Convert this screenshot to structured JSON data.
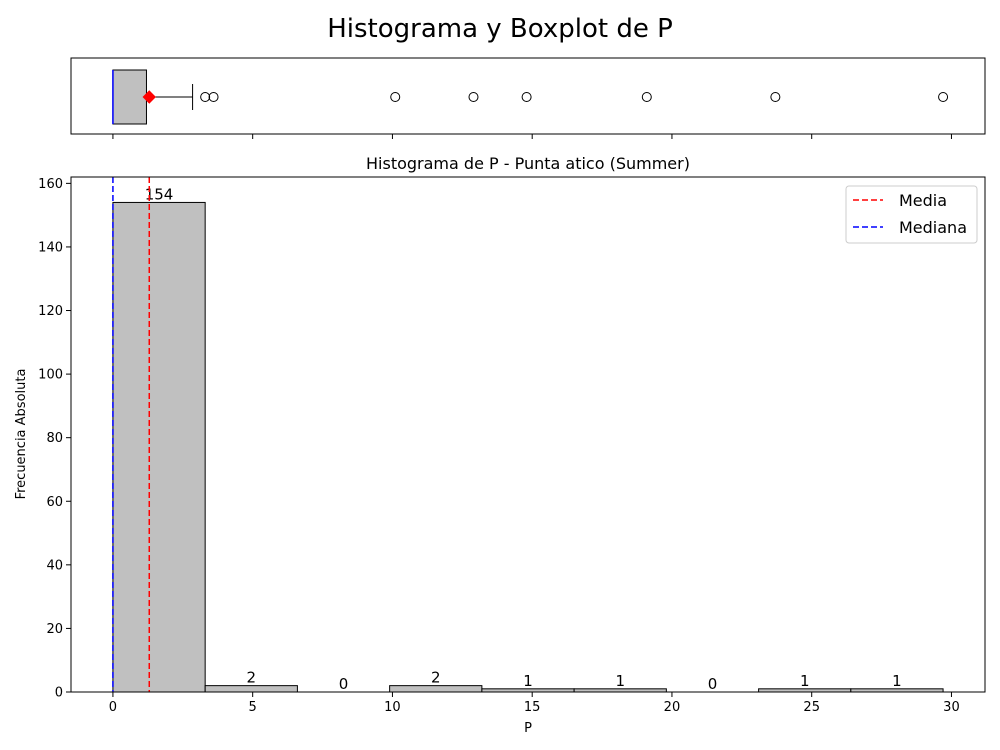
{
  "title": "Histograma y Boxplot de P",
  "chart_data": [
    {
      "type": "box",
      "orientation": "horizontal",
      "xlim": [
        -1.5,
        31.2
      ],
      "xticks": [
        0,
        5,
        10,
        15,
        20,
        25,
        30
      ],
      "whisker_low": 0,
      "q1": 0,
      "median": 0,
      "q3": 1.2,
      "whisker_high": 2.85,
      "mean": 1.3,
      "outliers": [
        3.3,
        3.6,
        10.1,
        12.9,
        14.8,
        19.1,
        23.7,
        29.7
      ],
      "box_color": "#c0c0c0",
      "median_color": "#0000ff",
      "mean_color": "#ff0000"
    },
    {
      "type": "bar",
      "title": "Histograma de P - Punta atico (Summer)",
      "xlabel": "P",
      "ylabel": "Frecuencia Absoluta",
      "xlim": [
        -1.5,
        31.2
      ],
      "ylim": [
        0,
        162
      ],
      "xticks": [
        "0",
        "5",
        "10",
        "15",
        "20",
        "25",
        "30"
      ],
      "yticks": [
        "0",
        "20",
        "40",
        "60",
        "80",
        "100",
        "120",
        "140",
        "160"
      ],
      "bin_edges": [
        0,
        3.3,
        6.6,
        9.9,
        13.2,
        16.5,
        19.8,
        23.1,
        26.4,
        29.7
      ],
      "values": [
        154,
        2,
        0,
        2,
        1,
        1,
        0,
        1,
        1
      ],
      "labels": [
        "154",
        "2",
        "0",
        "2",
        "1",
        "1",
        "0",
        "1",
        "1"
      ],
      "bar_color": "#c0c0c0",
      "mean": 1.3,
      "median": 0,
      "legend": [
        {
          "name": "Media",
          "color": "#ff0000"
        },
        {
          "name": "Mediana",
          "color": "#0000ff"
        }
      ],
      "legend_position": "top-right",
      "grid": false
    }
  ]
}
